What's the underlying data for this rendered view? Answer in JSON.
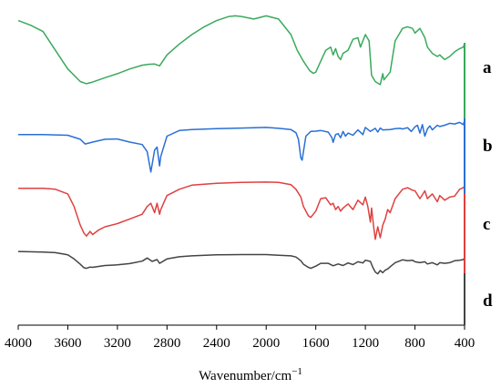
{
  "chart_data": {
    "type": "line",
    "xlabel_main": "Wavenumber/cm",
    "xlabel_sup": "−1",
    "x_reversed": true,
    "xlim": [
      4000,
      400
    ],
    "yaxis_visible": false,
    "grid": false,
    "tick_labels": [
      "4000",
      "3600",
      "3200",
      "2800",
      "2400",
      "2000",
      "1600",
      "1200",
      "800",
      "400"
    ],
    "ticks": [
      4000,
      3600,
      3200,
      2800,
      2400,
      2000,
      1600,
      1200,
      800,
      400
    ],
    "y_unit_note": "relative transmittance (0 = bottom, 100 = top of plot)",
    "series": [
      {
        "name": "a",
        "color": "#3aaa5c",
        "x": [
          4000,
          3900,
          3800,
          3700,
          3600,
          3500,
          3450,
          3400,
          3300,
          3200,
          3100,
          3000,
          2950,
          2900,
          2860,
          2800,
          2700,
          2600,
          2500,
          2400,
          2300,
          2250,
          2200,
          2100,
          2000,
          1900,
          1800,
          1750,
          1700,
          1650,
          1620,
          1600,
          1560,
          1520,
          1480,
          1460,
          1440,
          1420,
          1400,
          1380,
          1340,
          1300,
          1260,
          1240,
          1200,
          1170,
          1150,
          1120,
          1100,
          1080,
          1060,
          1050,
          1000,
          960,
          900,
          860,
          820,
          800,
          760,
          720,
          700,
          660,
          620,
          600,
          560,
          520,
          480,
          440,
          410,
          400
        ],
        "y": [
          97.5,
          96.0,
          94.0,
          88.0,
          82.0,
          78.0,
          77.3,
          77.8,
          79.2,
          80.5,
          82.0,
          83.2,
          83.5,
          83.6,
          83.0,
          86.5,
          90.0,
          93.0,
          95.5,
          97.5,
          98.8,
          99.0,
          98.8,
          98.0,
          99.0,
          98.0,
          93.0,
          88.0,
          84.5,
          81.5,
          80.6,
          81.0,
          84.5,
          88.0,
          89.0,
          86.5,
          88.5,
          86.0,
          85.0,
          87.0,
          88.0,
          91.5,
          92.0,
          89.0,
          93.0,
          91.0,
          80.0,
          78.0,
          77.5,
          77.0,
          80.5,
          78.5,
          81.0,
          91.0,
          95.0,
          95.5,
          95.0,
          93.5,
          95.0,
          92.0,
          89.0,
          87.0,
          86.0,
          86.5,
          85.0,
          86.0,
          87.5,
          88.5,
          89.0,
          90.0
        ]
      },
      {
        "name": "b",
        "color": "#2a6fd6",
        "x": [
          4000,
          3800,
          3600,
          3500,
          3460,
          3400,
          3300,
          3200,
          3100,
          3000,
          2960,
          2930,
          2900,
          2880,
          2860,
          2850,
          2800,
          2700,
          2600,
          2400,
          2200,
          2000,
          1900,
          1800,
          1760,
          1740,
          1720,
          1710,
          1700,
          1680,
          1640,
          1600,
          1560,
          1500,
          1470,
          1460,
          1440,
          1420,
          1400,
          1380,
          1360,
          1340,
          1300,
          1260,
          1220,
          1200,
          1160,
          1120,
          1100,
          1080,
          1060,
          1000,
          960,
          920,
          900,
          860,
          830,
          800,
          780,
          760,
          740,
          720,
          700,
          680,
          660,
          620,
          600,
          560,
          520,
          480,
          440,
          410,
          400
        ],
        "y": [
          61.0,
          61.0,
          60.8,
          59.5,
          58.0,
          58.6,
          59.5,
          59.6,
          58.6,
          57.8,
          55.5,
          49.0,
          56.0,
          57.0,
          51.0,
          54.0,
          60.5,
          62.3,
          62.6,
          62.9,
          63.1,
          63.3,
          63.0,
          62.6,
          61.6,
          59.5,
          53.5,
          52.8,
          55.5,
          60.5,
          62.0,
          62.1,
          62.3,
          61.8,
          60.0,
          58.5,
          61.0,
          61.3,
          60.0,
          62.0,
          60.5,
          61.5,
          60.8,
          62.5,
          61.0,
          63.3,
          62.0,
          63.0,
          61.8,
          63.1,
          62.5,
          62.6,
          62.9,
          63.0,
          62.8,
          63.2,
          62.0,
          63.5,
          64.0,
          61.5,
          64.2,
          60.5,
          62.8,
          63.8,
          62.5,
          64.0,
          63.6,
          64.0,
          64.6,
          64.4,
          64.9,
          64.2,
          65.5
        ]
      },
      {
        "name": "c",
        "color": "#e04040",
        "x": [
          4000,
          3800,
          3700,
          3600,
          3550,
          3500,
          3470,
          3450,
          3420,
          3400,
          3350,
          3300,
          3200,
          3100,
          3000,
          2960,
          2930,
          2900,
          2880,
          2860,
          2850,
          2800,
          2700,
          2600,
          2400,
          2200,
          2000,
          1900,
          1800,
          1760,
          1720,
          1700,
          1660,
          1640,
          1600,
          1560,
          1520,
          1480,
          1460,
          1440,
          1420,
          1400,
          1380,
          1340,
          1300,
          1260,
          1220,
          1200,
          1180,
          1160,
          1150,
          1130,
          1120,
          1100,
          1080,
          1060,
          1040,
          1020,
          1000,
          960,
          900,
          860,
          820,
          800,
          760,
          720,
          700,
          660,
          620,
          600,
          560,
          520,
          480,
          440,
          410,
          400
        ],
        "y": [
          43.8,
          43.8,
          43.5,
          42.0,
          38.0,
          32.0,
          29.5,
          28.5,
          30.0,
          29.0,
          30.5,
          31.5,
          32.5,
          34.0,
          35.5,
          38.0,
          39.0,
          36.0,
          39.0,
          35.5,
          37.0,
          41.5,
          43.5,
          44.8,
          45.4,
          45.7,
          45.8,
          45.7,
          45.0,
          43.5,
          41.0,
          38.0,
          35.0,
          34.5,
          36.5,
          40.5,
          40.8,
          38.5,
          39.0,
          37.0,
          38.0,
          36.5,
          37.5,
          38.8,
          37.0,
          40.0,
          38.5,
          41.0,
          38.0,
          33.0,
          37.5,
          30.5,
          27.5,
          31.5,
          28.0,
          32.0,
          34.0,
          37.0,
          36.0,
          40.5,
          43.5,
          44.0,
          43.2,
          43.0,
          40.5,
          43.0,
          40.5,
          42.0,
          39.5,
          41.5,
          40.0,
          41.0,
          41.3,
          43.5,
          44.0,
          44.5
        ]
      },
      {
        "name": "d",
        "color": "#444444",
        "x": [
          4000,
          3800,
          3700,
          3600,
          3550,
          3500,
          3470,
          3450,
          3420,
          3400,
          3300,
          3200,
          3100,
          3000,
          2960,
          2920,
          2880,
          2860,
          2800,
          2700,
          2600,
          2400,
          2200,
          2000,
          1900,
          1800,
          1760,
          1720,
          1700,
          1660,
          1640,
          1600,
          1560,
          1500,
          1460,
          1420,
          1380,
          1340,
          1300,
          1260,
          1220,
          1200,
          1160,
          1140,
          1120,
          1100,
          1080,
          1060,
          1040,
          1020,
          1000,
          960,
          900,
          860,
          820,
          800,
          760,
          720,
          700,
          660,
          620,
          600,
          560,
          520,
          480,
          440,
          410,
          400
        ],
        "y": [
          23.6,
          23.4,
          23.2,
          22.5,
          21.2,
          19.5,
          18.4,
          18.2,
          18.6,
          18.5,
          19.1,
          19.3,
          19.7,
          20.5,
          21.5,
          20.4,
          21.0,
          19.8,
          21.2,
          21.9,
          22.2,
          22.5,
          22.6,
          22.6,
          22.4,
          22.2,
          21.8,
          20.6,
          19.5,
          18.5,
          18.2,
          18.9,
          19.8,
          19.8,
          19.0,
          19.6,
          19.1,
          19.9,
          19.4,
          20.3,
          19.9,
          20.8,
          20.4,
          18.5,
          17.0,
          16.4,
          17.5,
          16.8,
          17.6,
          18.0,
          18.7,
          20.0,
          20.9,
          20.6,
          20.8,
          20.3,
          20.0,
          20.3,
          19.6,
          20.0,
          19.3,
          20.0,
          19.8,
          20.0,
          20.6,
          20.8,
          21.0,
          21.5
        ]
      }
    ]
  }
}
